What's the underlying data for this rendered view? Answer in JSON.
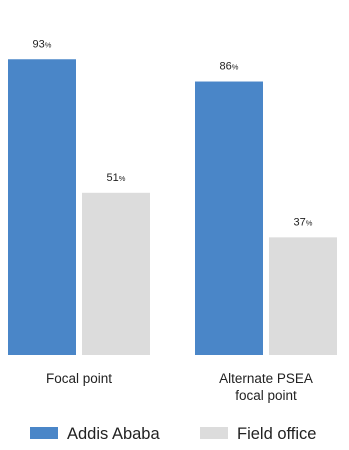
{
  "chart_data": {
    "type": "bar",
    "title": "",
    "xlabel": "",
    "ylabel": "",
    "ylim": [
      0,
      100
    ],
    "grid": false,
    "legend_position": "bottom",
    "value_suffix": "%",
    "categories": [
      [
        "Focal point"
      ],
      [
        "Alternate PSEA",
        "focal point"
      ]
    ],
    "series": [
      {
        "name": "Addis Ababa",
        "color": "#4a86c8",
        "values": [
          93,
          86
        ]
      },
      {
        "name": "Field office",
        "color": "#dcdcdc",
        "values": [
          51,
          37
        ]
      }
    ]
  }
}
